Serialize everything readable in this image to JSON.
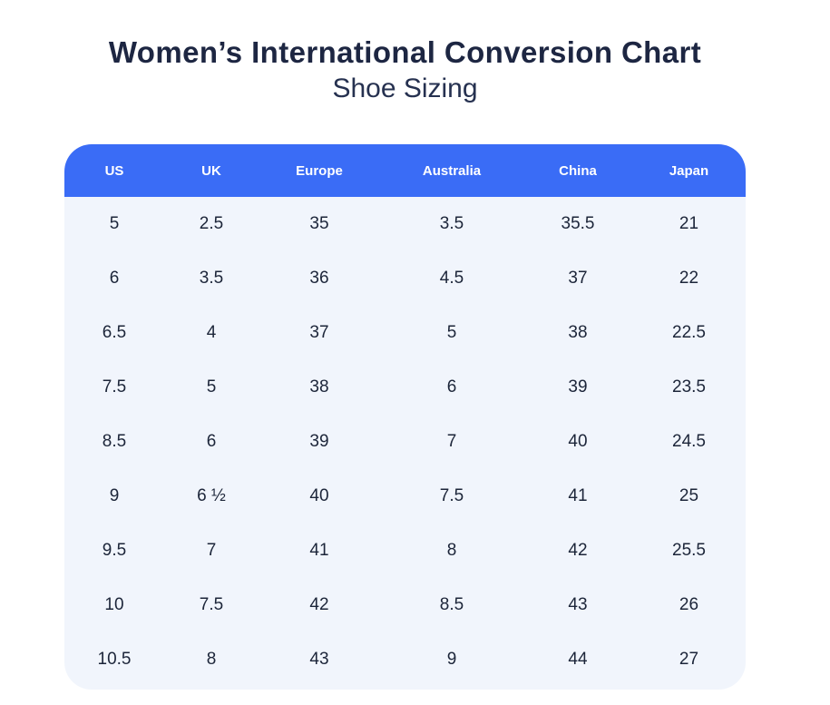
{
  "page": {
    "title": "Women’s International Conversion Chart",
    "subtitle": "Shoe Sizing"
  },
  "colors": {
    "header_bg": "#3a6cf6",
    "body_bg": "#f1f5fc",
    "title_color": "#1d2642",
    "subtitle_color": "#263150",
    "cell_color": "#1c2539"
  },
  "table": {
    "columns": [
      "US",
      "UK",
      "Europe",
      "Australia",
      "China",
      "Japan"
    ],
    "rows": [
      [
        "5",
        "2.5",
        "35",
        "3.5",
        "35.5",
        "21"
      ],
      [
        "6",
        "3.5",
        "36",
        "4.5",
        "37",
        "22"
      ],
      [
        "6.5",
        "4",
        "37",
        "5",
        "38",
        "22.5"
      ],
      [
        "7.5",
        "5",
        "38",
        "6",
        "39",
        "23.5"
      ],
      [
        "8.5",
        "6",
        "39",
        "7",
        "40",
        "24.5"
      ],
      [
        "9",
        "6 ½",
        "40",
        "7.5",
        "41",
        "25"
      ],
      [
        "9.5",
        "7",
        "41",
        "8",
        "42",
        "25.5"
      ],
      [
        "10",
        "7.5",
        "42",
        "8.5",
        "43",
        "26"
      ],
      [
        "10.5",
        "8",
        "43",
        "9",
        "44",
        "27"
      ]
    ]
  },
  "chart_data": {
    "type": "table",
    "title": "Women’s International Conversion Chart",
    "subtitle": "Shoe Sizing",
    "columns": [
      "US",
      "UK",
      "Europe",
      "Australia",
      "China",
      "Japan"
    ],
    "rows": [
      [
        "5",
        "2.5",
        "35",
        "3.5",
        "35.5",
        "21"
      ],
      [
        "6",
        "3.5",
        "36",
        "4.5",
        "37",
        "22"
      ],
      [
        "6.5",
        "4",
        "37",
        "5",
        "38",
        "22.5"
      ],
      [
        "7.5",
        "5",
        "38",
        "6",
        "39",
        "23.5"
      ],
      [
        "8.5",
        "6",
        "39",
        "7",
        "40",
        "24.5"
      ],
      [
        "9",
        "6 ½",
        "40",
        "7.5",
        "41",
        "25"
      ],
      [
        "9.5",
        "7",
        "41",
        "8",
        "42",
        "25.5"
      ],
      [
        "10",
        "7.5",
        "42",
        "8.5",
        "43",
        "26"
      ],
      [
        "10.5",
        "8",
        "43",
        "9",
        "44",
        "27"
      ]
    ],
    "layout": {
      "header_position": "top",
      "gridlines": false,
      "legend": false
    }
  }
}
